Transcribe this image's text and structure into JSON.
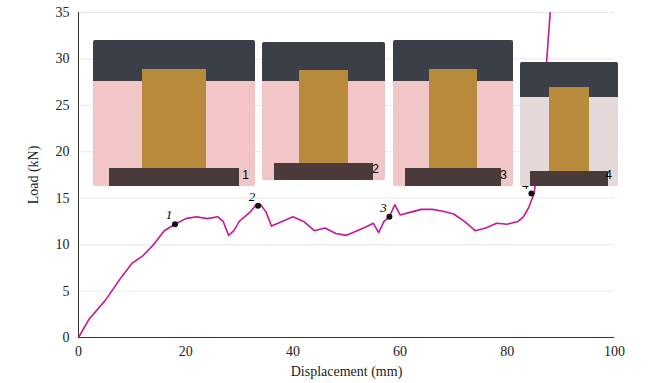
{
  "chart_data": {
    "type": "line",
    "x_label": "Displacement (mm)",
    "y_label": "Load (kN)",
    "xlim": [
      0,
      100
    ],
    "xticks": [
      0,
      20,
      40,
      60,
      80,
      100
    ],
    "ylim": [
      0,
      35
    ],
    "yticks": [
      0,
      5,
      10,
      15,
      20,
      25,
      30,
      35
    ],
    "grid": "y",
    "color": "#c2189a",
    "x": [
      0,
      2,
      5,
      8,
      10,
      12,
      14,
      16,
      18,
      20,
      22,
      24,
      26,
      27,
      28,
      29,
      30,
      32,
      33,
      34,
      35,
      36,
      38,
      40,
      42,
      44,
      46,
      48,
      50,
      52,
      54,
      55,
      56,
      57,
      58,
      59,
      60,
      62,
      64,
      66,
      68,
      70,
      72,
      74,
      76,
      78,
      80,
      82,
      83,
      84,
      85,
      86,
      87,
      88
    ],
    "values": [
      0,
      2,
      4,
      6.5,
      8,
      8.8,
      10,
      11.5,
      12.2,
      12.8,
      13,
      12.8,
      13,
      12.5,
      11,
      11.5,
      12.5,
      13.5,
      14.2,
      14.3,
      13.5,
      12,
      12.5,
      13,
      12.5,
      11.5,
      11.8,
      11.2,
      11,
      11.5,
      12,
      12.3,
      11.3,
      12.5,
      13,
      14.3,
      13.2,
      13.5,
      13.8,
      13.8,
      13.6,
      13.3,
      12.5,
      11.5,
      11.8,
      12.3,
      12.2,
      12.5,
      13,
      14,
      15.5,
      20,
      27,
      35
    ],
    "annotations": [
      {
        "x": 18,
        "y": 12.2,
        "label": "1"
      },
      {
        "x": 33.5,
        "y": 14.2,
        "label": "2"
      },
      {
        "x": 58,
        "y": 13,
        "label": "3"
      },
      {
        "x": 84.5,
        "y": 15.5,
        "label": "4"
      }
    ]
  }
}
